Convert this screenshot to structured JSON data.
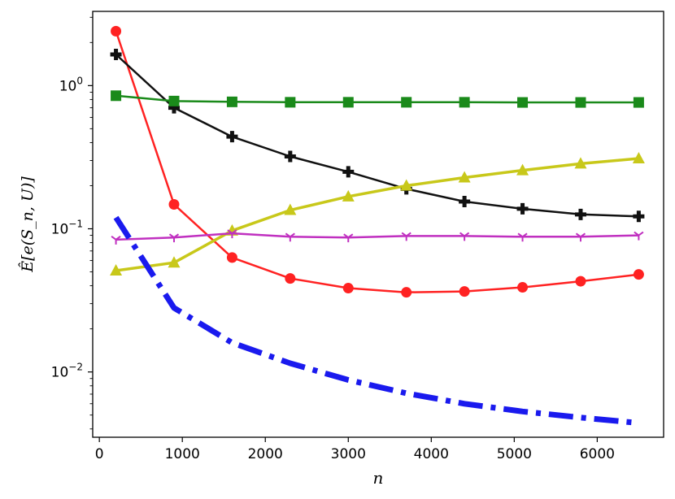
{
  "chart_data": {
    "type": "line",
    "xlabel": "n",
    "ylabel": "Ê[e(S_n, U)]",
    "yscale": "log",
    "xlim": [
      -80,
      6800
    ],
    "ylim": [
      0.0035,
      3.3
    ],
    "xticks": [
      0,
      1000,
      2000,
      3000,
      4000,
      5000,
      6000
    ],
    "yticks": [
      {
        "value": 0.01,
        "base": "10",
        "exp": "−2"
      },
      {
        "value": 0.1,
        "base": "10",
        "exp": "−1"
      },
      {
        "value": 1,
        "base": "10",
        "exp": "0"
      }
    ],
    "grid": false,
    "legend": "none",
    "x": [
      200,
      900,
      1600,
      2300,
      3000,
      3700,
      4400,
      5100,
      5800,
      6500
    ],
    "series": [
      {
        "color": "#ff2222",
        "marker": "circle",
        "style": "solid",
        "width": 2.5,
        "values": [
          2.4,
          0.148,
          0.063,
          0.045,
          0.0385,
          0.036,
          0.0365,
          0.039,
          0.043,
          0.048
        ]
      },
      {
        "color": "#111111",
        "marker": "plus",
        "style": "solid",
        "width": 2.5,
        "values": [
          1.65,
          0.7,
          0.44,
          0.32,
          0.25,
          0.19,
          0.155,
          0.138,
          0.126,
          0.122
        ]
      },
      {
        "color": "#1a8a1a",
        "marker": "square",
        "style": "solid",
        "width": 2.5,
        "values": [
          0.85,
          0.78,
          0.77,
          0.765,
          0.765,
          0.765,
          0.765,
          0.763,
          0.763,
          0.763
        ]
      },
      {
        "color": "#c8c81a",
        "marker": "triangle",
        "style": "solid",
        "width": 3.5,
        "values": [
          0.051,
          0.058,
          0.097,
          0.135,
          0.168,
          0.2,
          0.228,
          0.256,
          0.285,
          0.31
        ]
      },
      {
        "color": "#c030c0",
        "marker": "tri_down",
        "style": "solid",
        "width": 2.5,
        "values": [
          0.084,
          0.087,
          0.093,
          0.088,
          0.087,
          0.089,
          0.089,
          0.088,
          0.088,
          0.09
        ]
      },
      {
        "color": "#1a1aee",
        "marker": "none",
        "style": "dashdot",
        "width": 7,
        "values": [
          0.12,
          0.028,
          0.016,
          0.0115,
          0.0088,
          0.0071,
          0.006,
          0.0053,
          0.0048,
          0.0044
        ]
      }
    ]
  }
}
